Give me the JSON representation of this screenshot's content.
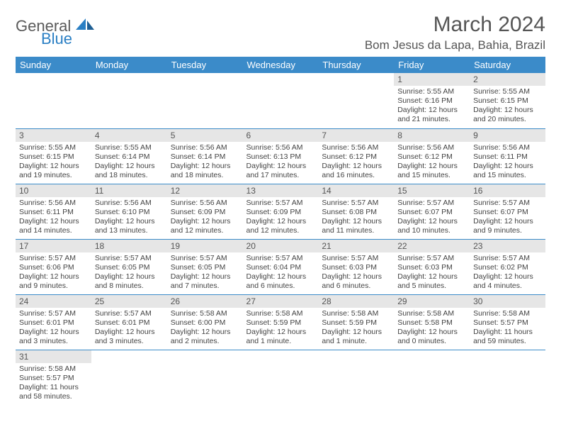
{
  "logo": {
    "text1": "General",
    "text2": "Blue"
  },
  "title": "March 2024",
  "location": "Bom Jesus da Lapa, Bahia, Brazil",
  "colors": {
    "header_bg": "#3b8bc9",
    "header_text": "#ffffff",
    "daynum_bg": "#e6e6e6",
    "rule": "#3b8bc9",
    "body_text": "#444444",
    "logo_gray": "#5a5a5a",
    "logo_blue": "#2a7fc4"
  },
  "weekdays": [
    "Sunday",
    "Monday",
    "Tuesday",
    "Wednesday",
    "Thursday",
    "Friday",
    "Saturday"
  ],
  "weeks": [
    [
      null,
      null,
      null,
      null,
      null,
      {
        "n": "1",
        "sr": "Sunrise: 5:55 AM",
        "ss": "Sunset: 6:16 PM",
        "d1": "Daylight: 12 hours",
        "d2": "and 21 minutes."
      },
      {
        "n": "2",
        "sr": "Sunrise: 5:55 AM",
        "ss": "Sunset: 6:15 PM",
        "d1": "Daylight: 12 hours",
        "d2": "and 20 minutes."
      }
    ],
    [
      {
        "n": "3",
        "sr": "Sunrise: 5:55 AM",
        "ss": "Sunset: 6:15 PM",
        "d1": "Daylight: 12 hours",
        "d2": "and 19 minutes."
      },
      {
        "n": "4",
        "sr": "Sunrise: 5:55 AM",
        "ss": "Sunset: 6:14 PM",
        "d1": "Daylight: 12 hours",
        "d2": "and 18 minutes."
      },
      {
        "n": "5",
        "sr": "Sunrise: 5:56 AM",
        "ss": "Sunset: 6:14 PM",
        "d1": "Daylight: 12 hours",
        "d2": "and 18 minutes."
      },
      {
        "n": "6",
        "sr": "Sunrise: 5:56 AM",
        "ss": "Sunset: 6:13 PM",
        "d1": "Daylight: 12 hours",
        "d2": "and 17 minutes."
      },
      {
        "n": "7",
        "sr": "Sunrise: 5:56 AM",
        "ss": "Sunset: 6:12 PM",
        "d1": "Daylight: 12 hours",
        "d2": "and 16 minutes."
      },
      {
        "n": "8",
        "sr": "Sunrise: 5:56 AM",
        "ss": "Sunset: 6:12 PM",
        "d1": "Daylight: 12 hours",
        "d2": "and 15 minutes."
      },
      {
        "n": "9",
        "sr": "Sunrise: 5:56 AM",
        "ss": "Sunset: 6:11 PM",
        "d1": "Daylight: 12 hours",
        "d2": "and 15 minutes."
      }
    ],
    [
      {
        "n": "10",
        "sr": "Sunrise: 5:56 AM",
        "ss": "Sunset: 6:11 PM",
        "d1": "Daylight: 12 hours",
        "d2": "and 14 minutes."
      },
      {
        "n": "11",
        "sr": "Sunrise: 5:56 AM",
        "ss": "Sunset: 6:10 PM",
        "d1": "Daylight: 12 hours",
        "d2": "and 13 minutes."
      },
      {
        "n": "12",
        "sr": "Sunrise: 5:56 AM",
        "ss": "Sunset: 6:09 PM",
        "d1": "Daylight: 12 hours",
        "d2": "and 12 minutes."
      },
      {
        "n": "13",
        "sr": "Sunrise: 5:57 AM",
        "ss": "Sunset: 6:09 PM",
        "d1": "Daylight: 12 hours",
        "d2": "and 12 minutes."
      },
      {
        "n": "14",
        "sr": "Sunrise: 5:57 AM",
        "ss": "Sunset: 6:08 PM",
        "d1": "Daylight: 12 hours",
        "d2": "and 11 minutes."
      },
      {
        "n": "15",
        "sr": "Sunrise: 5:57 AM",
        "ss": "Sunset: 6:07 PM",
        "d1": "Daylight: 12 hours",
        "d2": "and 10 minutes."
      },
      {
        "n": "16",
        "sr": "Sunrise: 5:57 AM",
        "ss": "Sunset: 6:07 PM",
        "d1": "Daylight: 12 hours",
        "d2": "and 9 minutes."
      }
    ],
    [
      {
        "n": "17",
        "sr": "Sunrise: 5:57 AM",
        "ss": "Sunset: 6:06 PM",
        "d1": "Daylight: 12 hours",
        "d2": "and 9 minutes."
      },
      {
        "n": "18",
        "sr": "Sunrise: 5:57 AM",
        "ss": "Sunset: 6:05 PM",
        "d1": "Daylight: 12 hours",
        "d2": "and 8 minutes."
      },
      {
        "n": "19",
        "sr": "Sunrise: 5:57 AM",
        "ss": "Sunset: 6:05 PM",
        "d1": "Daylight: 12 hours",
        "d2": "and 7 minutes."
      },
      {
        "n": "20",
        "sr": "Sunrise: 5:57 AM",
        "ss": "Sunset: 6:04 PM",
        "d1": "Daylight: 12 hours",
        "d2": "and 6 minutes."
      },
      {
        "n": "21",
        "sr": "Sunrise: 5:57 AM",
        "ss": "Sunset: 6:03 PM",
        "d1": "Daylight: 12 hours",
        "d2": "and 6 minutes."
      },
      {
        "n": "22",
        "sr": "Sunrise: 5:57 AM",
        "ss": "Sunset: 6:03 PM",
        "d1": "Daylight: 12 hours",
        "d2": "and 5 minutes."
      },
      {
        "n": "23",
        "sr": "Sunrise: 5:57 AM",
        "ss": "Sunset: 6:02 PM",
        "d1": "Daylight: 12 hours",
        "d2": "and 4 minutes."
      }
    ],
    [
      {
        "n": "24",
        "sr": "Sunrise: 5:57 AM",
        "ss": "Sunset: 6:01 PM",
        "d1": "Daylight: 12 hours",
        "d2": "and 3 minutes."
      },
      {
        "n": "25",
        "sr": "Sunrise: 5:57 AM",
        "ss": "Sunset: 6:01 PM",
        "d1": "Daylight: 12 hours",
        "d2": "and 3 minutes."
      },
      {
        "n": "26",
        "sr": "Sunrise: 5:58 AM",
        "ss": "Sunset: 6:00 PM",
        "d1": "Daylight: 12 hours",
        "d2": "and 2 minutes."
      },
      {
        "n": "27",
        "sr": "Sunrise: 5:58 AM",
        "ss": "Sunset: 5:59 PM",
        "d1": "Daylight: 12 hours",
        "d2": "and 1 minute."
      },
      {
        "n": "28",
        "sr": "Sunrise: 5:58 AM",
        "ss": "Sunset: 5:59 PM",
        "d1": "Daylight: 12 hours",
        "d2": "and 1 minute."
      },
      {
        "n": "29",
        "sr": "Sunrise: 5:58 AM",
        "ss": "Sunset: 5:58 PM",
        "d1": "Daylight: 12 hours",
        "d2": "and 0 minutes."
      },
      {
        "n": "30",
        "sr": "Sunrise: 5:58 AM",
        "ss": "Sunset: 5:57 PM",
        "d1": "Daylight: 11 hours",
        "d2": "and 59 minutes."
      }
    ],
    [
      {
        "n": "31",
        "sr": "Sunrise: 5:58 AM",
        "ss": "Sunset: 5:57 PM",
        "d1": "Daylight: 11 hours",
        "d2": "and 58 minutes."
      },
      null,
      null,
      null,
      null,
      null,
      null
    ]
  ]
}
